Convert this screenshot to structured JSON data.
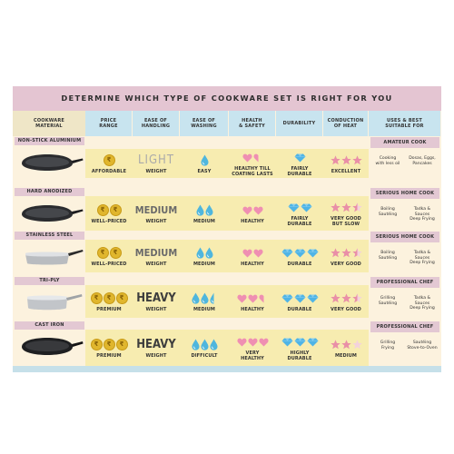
{
  "title": "DETERMINE WHICH TYPE OF COOKWARE SET IS RIGHT FOR YOU",
  "headers": [
    {
      "l1": "COOKWARE",
      "l2": "MATERIAL"
    },
    {
      "l1": "PRICE",
      "l2": "RANGE"
    },
    {
      "l1": "EASE OF",
      "l2": "HANDLING"
    },
    {
      "l1": "EASE OF",
      "l2": "WASHING"
    },
    {
      "l1": "HEALTH",
      "l2": "& SAFETY"
    },
    {
      "l1": "DURABILITY",
      "l2": ""
    },
    {
      "l1": "CONDUCTION",
      "l2": "OF HEAT"
    },
    {
      "l1": "USES & BEST",
      "l2": "SUITABLE FOR"
    }
  ],
  "icons": {
    "coin_symbol": "₹",
    "drop": "#4fb6dd",
    "heart": "#ef8fb2",
    "gem": "#4fb4e6",
    "star": "#e98fa7",
    "star_empty": "#f3d2dc"
  },
  "rows": [
    {
      "name": "NON-STICK ALUMINIUM",
      "pan": "nonstick",
      "coins": 1,
      "price": "AFFORDABLE",
      "handling_word": "LIGHT",
      "handling_style": "light",
      "handling": "WEIGHT",
      "drops": 1,
      "washing": "EASY",
      "hearts": 1.5,
      "health_l1": "HEALTHY TILL",
      "health_l2": "COATING LASTS",
      "gems": 1,
      "durability_l1": "FAIRLY",
      "durability_l2": "DURABLE",
      "stars": 3,
      "heat_l1": "EXCELLENT",
      "heat_l2": "",
      "use_title": "AMATEUR COOK",
      "uses": [
        {
          "l1": "Cooking",
          "l2": "with less oil"
        },
        {
          "l1": "Dosas, Eggs,",
          "l2": "Pancakes"
        }
      ]
    },
    {
      "name": "HARD ANODIZED",
      "pan": "anodized",
      "coins": 2,
      "price": "WELL-PRICED",
      "handling_word": "MEDIUM",
      "handling_style": "medium",
      "handling": "WEIGHT",
      "drops": 2,
      "washing": "MEDIUM",
      "hearts": 2,
      "health_l1": "HEALTHY",
      "health_l2": "",
      "gems": 2,
      "durability_l1": "FAIRLY",
      "durability_l2": "DURABLE",
      "stars": 2.5,
      "heat_l1": "VERY GOOD",
      "heat_l2": "BUT SLOW",
      "use_title": "SERIOUS HOME COOK",
      "uses": [
        {
          "l1": "Boiling",
          "l2": "Sautéing"
        },
        {
          "l1": "Tadka & Sauces",
          "l2": "Deep Frying"
        }
      ]
    },
    {
      "name": "STAINLESS STEEL",
      "pan": "steel",
      "coins": 2,
      "price": "WELL-PRICED",
      "handling_word": "MEDIUM",
      "handling_style": "medium",
      "handling": "WEIGHT",
      "drops": 2,
      "washing": "MEDIUM",
      "hearts": 2,
      "health_l1": "HEALTHY",
      "health_l2": "",
      "gems": 3,
      "durability_l1": "DURABLE",
      "durability_l2": "",
      "stars": 2.5,
      "heat_l1": "VERY GOOD",
      "heat_l2": "",
      "use_title": "SERIOUS HOME COOK",
      "uses": [
        {
          "l1": "Boiling",
          "l2": "Sautéing"
        },
        {
          "l1": "Tadka & Sauces",
          "l2": "Deep Frying"
        }
      ]
    },
    {
      "name": "TRI-PLY",
      "pan": "triply",
      "coins": 3,
      "price": "PREMIUM",
      "handling_word": "HEAVY",
      "handling_style": "heavy",
      "handling": "WEIGHT",
      "drops": 2.5,
      "washing": "MEDIUM",
      "hearts": 2.5,
      "health_l1": "HEALTHY",
      "health_l2": "",
      "gems": 3,
      "durability_l1": "DURABLE",
      "durability_l2": "",
      "stars": 2.5,
      "heat_l1": "VERY GOOD",
      "heat_l2": "",
      "use_title": "PROFESSIONAL CHEF",
      "uses": [
        {
          "l1": "Grilling",
          "l2": "Sautéing"
        },
        {
          "l1": "Tadka & Sauces",
          "l2": "Deep Frying"
        }
      ]
    },
    {
      "name": "CAST IRON",
      "pan": "castiron",
      "coins": 3,
      "price": "PREMIUM",
      "handling_word": "HEAVY",
      "handling_style": "heavy",
      "handling": "WEIGHT",
      "drops": 3,
      "washing": "DIFFICULT",
      "hearts": 3,
      "health_l1": "VERY",
      "health_l2": "HEALTHY",
      "gems": 3,
      "durability_l1": "HIGHLY",
      "durability_l2": "DURABLE",
      "stars": 2,
      "heat_l1": "MEDIUM",
      "heat_l2": "",
      "use_title": "PROFESSIONAL CHEF",
      "uses": [
        {
          "l1": "Grilling",
          "l2": "Frying"
        },
        {
          "l1": "Sautéing",
          "l2": "Stove-to-Oven"
        }
      ]
    }
  ]
}
